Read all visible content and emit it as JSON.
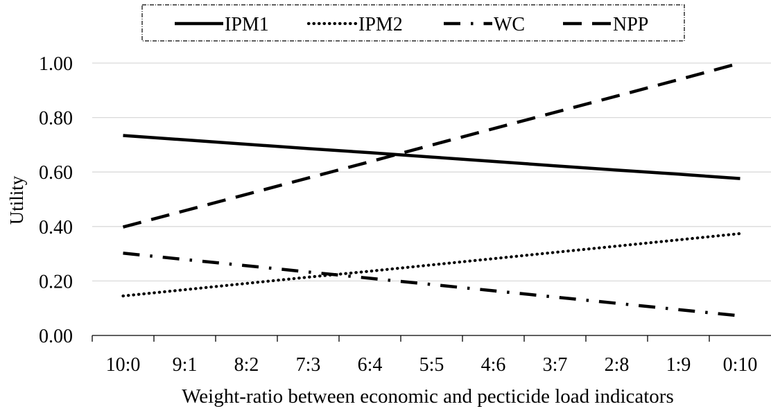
{
  "chart_data": {
    "type": "line",
    "title": "",
    "xlabel": "Weight-ratio  between economic and pecticide load indicators",
    "ylabel": "Utility",
    "categories": [
      "10:0",
      "9:1",
      "8:2",
      "7:3",
      "6:4",
      "5:5",
      "4:6",
      "3:7",
      "2:8",
      "1:9",
      "0:10"
    ],
    "ylim": [
      0,
      1
    ],
    "yticks": [
      "0.00",
      "0.20",
      "0.40",
      "0.60",
      "0.80",
      "1.00"
    ],
    "grid": "horizontal",
    "legend_position": "top",
    "series": [
      {
        "name": "IPM1",
        "dash": "solid",
        "color": "#000000",
        "values": [
          0.734,
          0.718,
          0.702,
          0.686,
          0.671,
          0.655,
          0.639,
          0.623,
          0.607,
          0.592,
          0.576
        ]
      },
      {
        "name": "IPM2",
        "dash": "dotted",
        "color": "#000000",
        "values": [
          0.145,
          0.168,
          0.191,
          0.214,
          0.236,
          0.259,
          0.282,
          0.305,
          0.328,
          0.351,
          0.374
        ]
      },
      {
        "name": "WC",
        "dash": "dash-dot",
        "color": "#000000",
        "values": [
          0.302,
          0.279,
          0.256,
          0.233,
          0.21,
          0.187,
          0.164,
          0.141,
          0.118,
          0.095,
          0.072
        ]
      },
      {
        "name": "NPP",
        "dash": "dashed",
        "color": "#000000",
        "values": [
          0.398,
          0.458,
          0.518,
          0.578,
          0.638,
          0.699,
          0.759,
          0.819,
          0.879,
          0.939,
          1.0
        ]
      }
    ]
  }
}
